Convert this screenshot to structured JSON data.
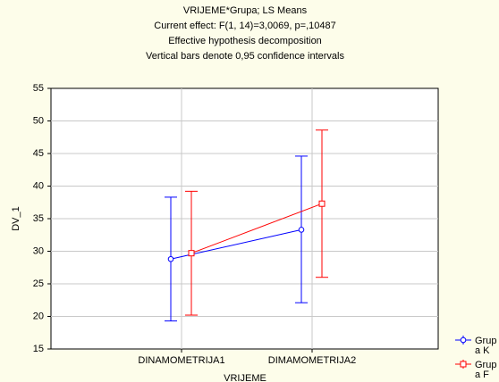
{
  "chart_data": {
    "type": "line",
    "title": [
      "VRIJEME*Grupa; LS Means",
      "Current effect: F(1, 14)=3,0069, p=,10487",
      "Effective hypothesis decomposition",
      "Vertical bars denote 0,95 confidence intervals"
    ],
    "xlabel": "VRIJEME",
    "ylabel": "DV_1",
    "categories": [
      "DINAMOMETRIJA1",
      "DIMAMOMETRIJA2"
    ],
    "series": [
      {
        "name": "Grupa K",
        "color": "#0000ff",
        "marker": "circle",
        "values": [
          28.8,
          33.3
        ],
        "lower": [
          19.3,
          22.1
        ],
        "upper": [
          38.3,
          44.6
        ]
      },
      {
        "name": "Grupa F",
        "color": "#ff0000",
        "marker": "square",
        "values": [
          29.7,
          37.3
        ],
        "lower": [
          20.2,
          26.0
        ],
        "upper": [
          39.2,
          48.6
        ]
      }
    ],
    "ylim": [
      15,
      55
    ],
    "yticks": [
      15,
      20,
      25,
      30,
      35,
      40,
      45,
      50,
      55
    ],
    "grid": true
  }
}
